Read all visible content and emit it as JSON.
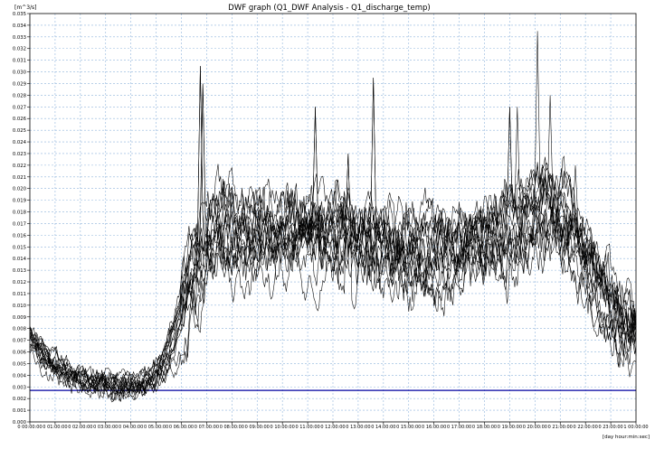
{
  "chart_data": {
    "type": "line",
    "title": "DWF graph (Q1_DWF Analysis - Q1_discharge_temp)",
    "ylabel": "[m^3/s]",
    "xlabel": "[day hour:min:sec]",
    "ylim": [
      0,
      0.035
    ],
    "xlim": [
      0,
      24
    ],
    "grid": true,
    "y_ticks": [
      "0.000",
      "0.001",
      "0.002",
      "0.003",
      "0.004",
      "0.005",
      "0.006",
      "0.007",
      "0.008",
      "0.009",
      "0.010",
      "0.011",
      "0.012",
      "0.013",
      "0.014",
      "0.015",
      "0.016",
      "0.017",
      "0.018",
      "0.019",
      "0.020",
      "0.021",
      "0.022",
      "0.023",
      "0.024",
      "0.025",
      "0.026",
      "0.027",
      "0.028",
      "0.029",
      "0.030",
      "0.031",
      "0.032",
      "0.033",
      "0.034",
      "0.035"
    ],
    "x_ticks": [
      "0 00:00:00",
      "0 01:00:00",
      "0 02:00:00",
      "0 03:00:00",
      "0 04:00:00",
      "0 05:00:00",
      "0 06:00:00",
      "0 07:00:00",
      "0 08:00:00",
      "0 09:00:00",
      "0 10:00:00",
      "0 11:00:00",
      "0 12:00:00",
      "0 13:00:00",
      "0 14:00:00",
      "0 15:00:00",
      "0 16:00:00",
      "0 17:00:00",
      "0 18:00:00",
      "0 19:00:00",
      "0 20:00:00",
      "0 21:00:00",
      "0 22:00:00",
      "0 23:00:00",
      "1 00:00:00"
    ],
    "reference_line": {
      "y": 0.0027,
      "color": "#0000a0"
    },
    "profile_hours": [
      0,
      0.5,
      1,
      1.5,
      2,
      2.5,
      3,
      3.5,
      4,
      4.5,
      5,
      5.5,
      6,
      6.5,
      7,
      7.5,
      8,
      8.5,
      9,
      9.5,
      10,
      10.5,
      11,
      11.5,
      12,
      12.5,
      13,
      13.5,
      14,
      14.5,
      15,
      15.5,
      16,
      16.5,
      17,
      17.5,
      18,
      18.5,
      19,
      19.5,
      20,
      20.5,
      21,
      21.5,
      22,
      22.5,
      23,
      23.5,
      24
    ],
    "profile_values": [
      0.0075,
      0.006,
      0.0048,
      0.0042,
      0.0037,
      0.0034,
      0.0032,
      0.0031,
      0.0031,
      0.0033,
      0.0038,
      0.005,
      0.0085,
      0.0125,
      0.0152,
      0.0162,
      0.0165,
      0.0162,
      0.016,
      0.0163,
      0.0165,
      0.0162,
      0.016,
      0.0163,
      0.0158,
      0.0155,
      0.0155,
      0.0152,
      0.015,
      0.0148,
      0.0147,
      0.0146,
      0.0147,
      0.0148,
      0.015,
      0.0152,
      0.0156,
      0.016,
      0.0165,
      0.0172,
      0.0178,
      0.0182,
      0.0178,
      0.0165,
      0.0145,
      0.0125,
      0.0105,
      0.0087,
      0.0075
    ],
    "series_count": 16,
    "series_color": "#000000",
    "peaks": [
      {
        "x": 6.75,
        "y": 0.0305
      },
      {
        "x": 6.85,
        "y": 0.029
      },
      {
        "x": 11.3,
        "y": 0.027
      },
      {
        "x": 12.6,
        "y": 0.023
      },
      {
        "x": 13.6,
        "y": 0.0295
      },
      {
        "x": 19.0,
        "y": 0.027
      },
      {
        "x": 19.3,
        "y": 0.027
      },
      {
        "x": 20.1,
        "y": 0.0335
      },
      {
        "x": 20.6,
        "y": 0.028
      },
      {
        "x": 21.6,
        "y": 0.022
      }
    ]
  }
}
